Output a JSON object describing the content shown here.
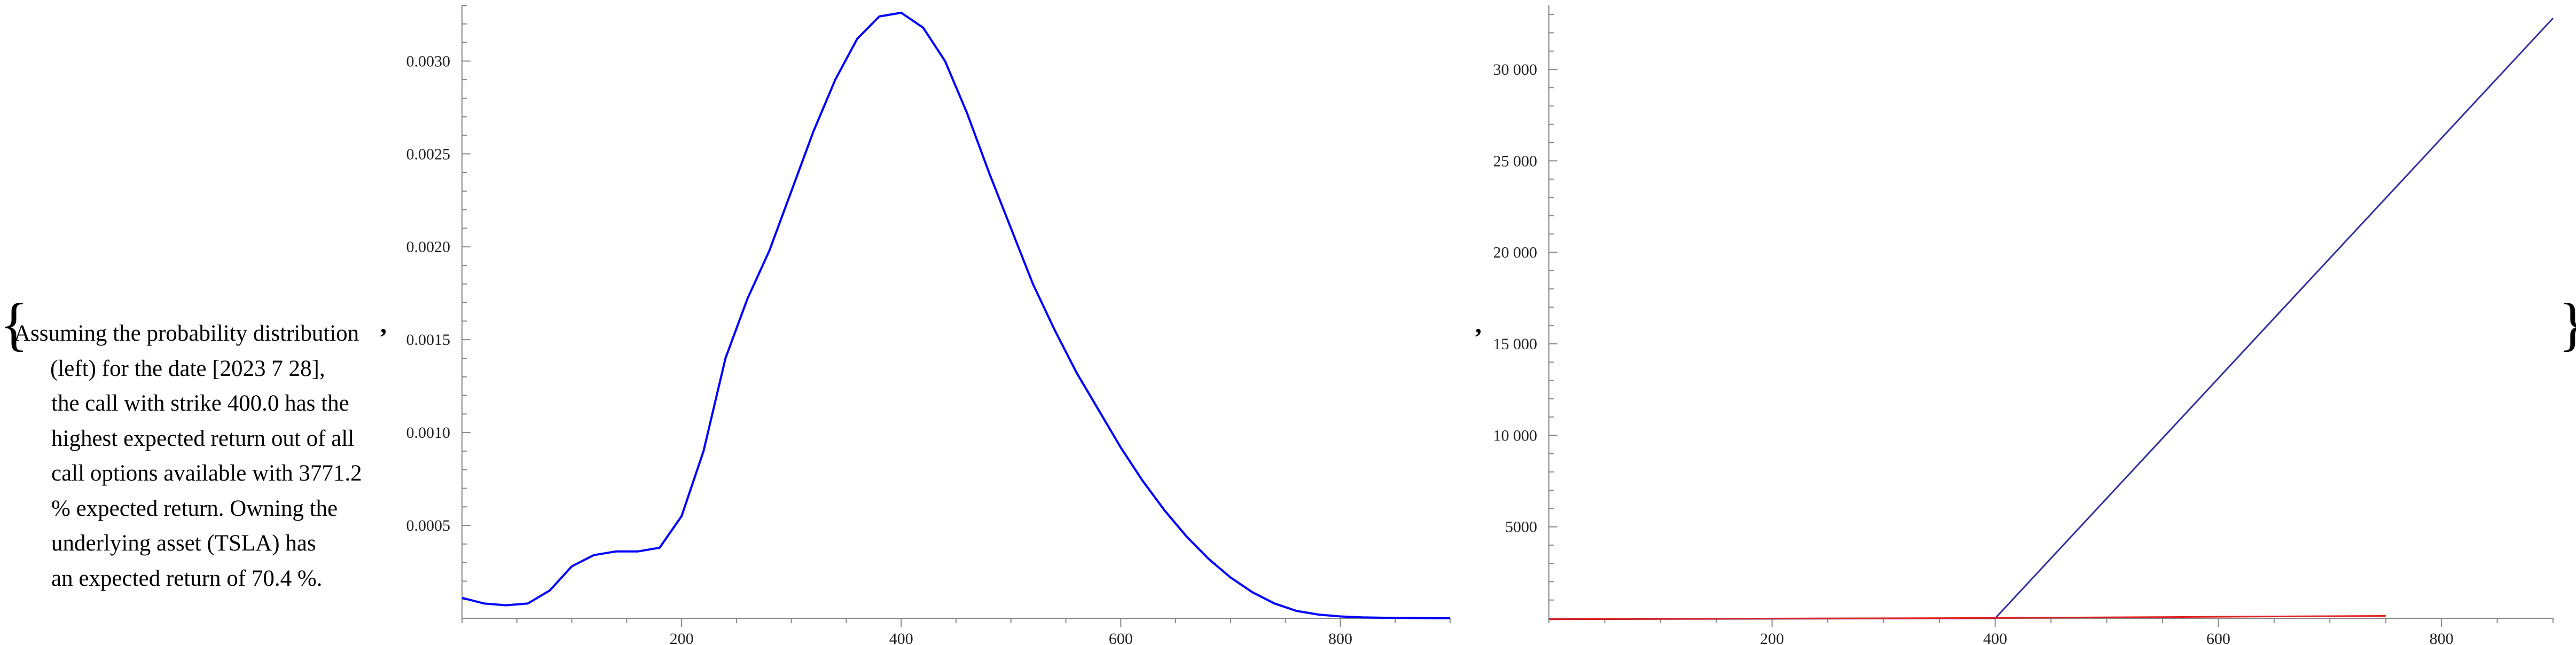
{
  "prefix_brace": "{",
  "suffix_brace": "}",
  "separator": ",",
  "description_lines": [
    "Assuming the probability distribution",
    "(left) for the date [2023 7 28],",
    "the call with strike 400.0 has the",
    "highest expected return out of all",
    "call options available with 3771.2",
    "% expected return. Owning the",
    "underlying asset (TSLA) has",
    "an expected return of 70.4 %."
  ],
  "chart_data": [
    {
      "type": "line",
      "title": "",
      "xlabel": "",
      "ylabel": "",
      "xlim": [
        0,
        900
      ],
      "ylim": [
        0,
        0.0033
      ],
      "xticks": [
        "200",
        "400",
        "600",
        "800"
      ],
      "yticks": [
        "0.0005",
        "0.0010",
        "0.0015",
        "0.0020",
        "0.0025",
        "0.0030"
      ],
      "series": [
        {
          "color": "#0000ff",
          "x": [
            0,
            20,
            40,
            60,
            80,
            100,
            120,
            140,
            160,
            180,
            200,
            220,
            240,
            260,
            280,
            300,
            320,
            340,
            360,
            380,
            400,
            420,
            440,
            460,
            480,
            500,
            520,
            540,
            560,
            580,
            600,
            620,
            640,
            660,
            680,
            700,
            720,
            740,
            760,
            780,
            800,
            820,
            840,
            860,
            880,
            900
          ],
          "y": [
            0.00011,
            8e-05,
            7e-05,
            8e-05,
            0.00015,
            0.00028,
            0.00034,
            0.00036,
            0.00036,
            0.00038,
            0.00055,
            0.0009,
            0.0014,
            0.00172,
            0.00198,
            0.0023,
            0.00262,
            0.0029,
            0.00312,
            0.00324,
            0.00326,
            0.00318,
            0.003,
            0.00272,
            0.0024,
            0.0021,
            0.0018,
            0.00155,
            0.00132,
            0.00112,
            0.00092,
            0.00074,
            0.00058,
            0.00044,
            0.00032,
            0.00022,
            0.00014,
            8e-05,
            4e-05,
            2e-05,
            1e-05,
            5e-06,
            3e-06,
            2e-06,
            1e-06,
            0.0
          ]
        }
      ]
    },
    {
      "type": "line",
      "title": "",
      "xlabel": "",
      "ylabel": "",
      "xlim": [
        0,
        900
      ],
      "ylim": [
        0,
        33500
      ],
      "xticks": [
        "200",
        "400",
        "600",
        "800"
      ],
      "yticks": [
        "5000",
        "10 000",
        "15 000",
        "20 000",
        "25 000",
        "30 000"
      ],
      "series": [
        {
          "color": "#3030a0",
          "x": [
            0,
            400,
            900
          ],
          "y": [
            -50,
            0,
            32800
          ]
        },
        {
          "color": "#e02020",
          "x": [
            0,
            400,
            750
          ],
          "y": [
            -50,
            20,
            130
          ]
        }
      ]
    }
  ]
}
